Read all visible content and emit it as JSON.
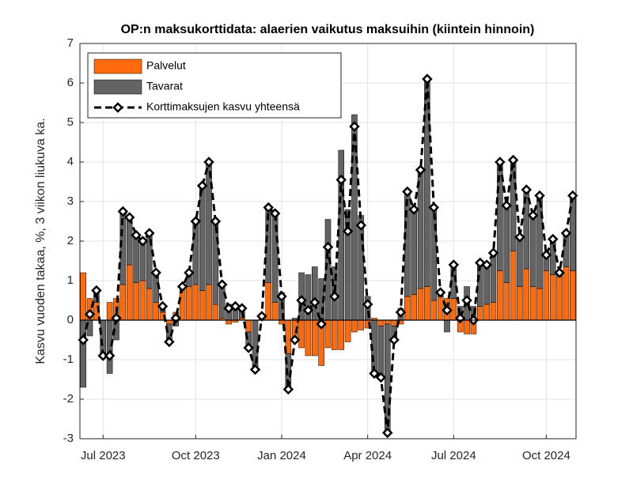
{
  "chart_data": {
    "type": "bar",
    "stacked": true,
    "title": "OP:n maksukorttidata: alaerien vaikutus maksuihin (kiintein hinnoin)",
    "y_label": "Kasvu vuoden takaa, %, 3 viikon liukuva ka.",
    "categories": [
      null,
      null,
      null,
      "Jul 2023",
      null,
      null,
      null,
      null,
      null,
      null,
      null,
      null,
      null,
      null,
      null,
      null,
      null,
      "Oct 2023",
      null,
      null,
      null,
      null,
      null,
      null,
      null,
      null,
      null,
      null,
      null,
      null,
      "Jan 2024",
      null,
      null,
      null,
      null,
      null,
      null,
      null,
      null,
      null,
      null,
      null,
      null,
      "Apr 2024",
      null,
      null,
      null,
      null,
      null,
      null,
      null,
      null,
      null,
      null,
      null,
      null,
      "Jul 2024",
      null,
      null,
      null,
      null,
      null,
      null,
      null,
      null,
      null,
      null,
      null,
      null,
      null,
      "Oct 2024",
      null,
      null,
      null,
      null
    ],
    "series": [
      {
        "name": "Palvelut",
        "color": "#ff6a0d",
        "values": [
          1.2,
          0.55,
          0.45,
          0,
          0.45,
          0.55,
          0.9,
          1.4,
          0.95,
          1.0,
          0.8,
          0.45,
          0.2,
          -0.1,
          0.2,
          0.85,
          0.85,
          0.9,
          0.75,
          0.9,
          0.4,
          0.05,
          -0.1,
          -0.05,
          0.05,
          -0.3,
          0,
          0.1,
          0.95,
          0.45,
          -0.1,
          -0.85,
          -0.55,
          -0.7,
          -0.9,
          -0.9,
          -1.15,
          -0.7,
          -0.75,
          -0.75,
          -0.55,
          -0.3,
          -0.25,
          -0.2,
          0.05,
          -0.15,
          -0.1,
          -0.15,
          -0.1,
          0.6,
          0.65,
          0.8,
          0.85,
          0.5,
          0.6,
          0.55,
          0.55,
          -0.3,
          -0.35,
          -0.35,
          0.35,
          0.4,
          0.45,
          1.25,
          0.95,
          1.75,
          0.85,
          1.3,
          0.85,
          0.8,
          1.25,
          1.15,
          1.1,
          1.35,
          1.25
        ]
      },
      {
        "name": "Tavarat",
        "color": "#646464",
        "values": [
          -1.7,
          -0.4,
          0.3,
          -0.9,
          -1.35,
          -0.5,
          1.85,
          1.2,
          1.2,
          1.0,
          1.4,
          0.75,
          0.15,
          -0.45,
          -0.15,
          0,
          0.35,
          1.6,
          2.65,
          3.1,
          2.1,
          0.85,
          0.4,
          0.4,
          0.25,
          -0.4,
          -1.25,
          0,
          1.9,
          2.25,
          0.7,
          -0.9,
          0.05,
          1.2,
          1.15,
          1.35,
          1.05,
          2.55,
          1.35,
          4.3,
          2.8,
          5.2,
          2.65,
          0.6,
          -1.4,
          -1.3,
          -2.75,
          -0.35,
          0.3,
          2.65,
          2.15,
          3.0,
          5.25,
          2.35,
          0.1,
          -0.3,
          0.85,
          0.35,
          0.85,
          0.35,
          1.1,
          1.0,
          1.25,
          2.75,
          1.95,
          2.3,
          1.25,
          2.0,
          1.8,
          2.35,
          0.4,
          0.9,
          0.1,
          0.85,
          1.9
        ]
      },
      {
        "name": "Korttimaksujen kasvu yhteensä",
        "type": "line",
        "color": "#000000",
        "values": [
          -0.5,
          0.15,
          0.75,
          -0.9,
          -0.9,
          0.05,
          2.75,
          2.6,
          2.15,
          2.0,
          2.2,
          1.2,
          0.35,
          -0.55,
          0.05,
          0.85,
          1.2,
          2.5,
          3.4,
          4.0,
          2.5,
          0.9,
          0.3,
          0.35,
          0.3,
          -0.7,
          -1.25,
          0.1,
          2.85,
          2.7,
          0.6,
          -1.75,
          -0.5,
          0.5,
          0.25,
          0.45,
          -0.1,
          1.85,
          0.6,
          3.55,
          2.25,
          4.9,
          2.4,
          0.4,
          -1.35,
          -1.45,
          -2.85,
          -0.5,
          0.2,
          3.25,
          2.8,
          3.8,
          6.1,
          2.85,
          0.7,
          0.25,
          1.4,
          0.05,
          0.5,
          0.0,
          1.45,
          1.4,
          1.7,
          4.0,
          2.9,
          4.05,
          2.1,
          3.3,
          2.65,
          3.15,
          1.65,
          2.05,
          1.2,
          2.2,
          3.15
        ]
      }
    ],
    "ylim": [
      -3,
      7
    ],
    "yticks": [
      -3,
      -2,
      -1,
      0,
      1,
      2,
      3,
      4,
      5,
      6,
      7
    ],
    "grid": true,
    "legend": "upper left"
  }
}
